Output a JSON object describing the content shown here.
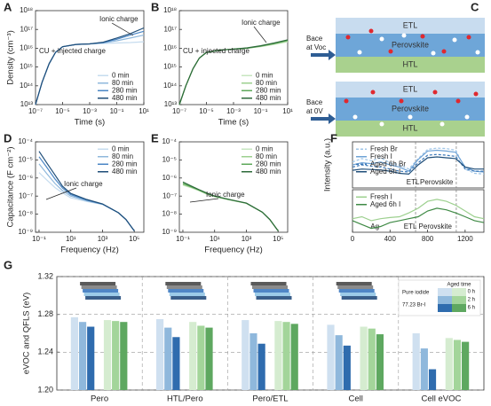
{
  "chart_data": [
    {
      "type": "line",
      "panel": "A",
      "xscale": "log",
      "yscale": "log",
      "xlabel": "Time (s)",
      "ylabel": "Density (cm⁻³)",
      "xlim": [
        1e-07,
        10
      ],
      "ylim": [
        10000000000000.0,
        1e+18
      ],
      "xticks": [
        {
          "value": 1e-07,
          "label": "10⁻⁷"
        },
        {
          "value": 1e-05,
          "label": "10⁻⁵"
        },
        {
          "value": 0.001,
          "label": "10⁻³"
        },
        {
          "value": 0.1,
          "label": "10⁻¹"
        },
        {
          "value": 10,
          "label": "10¹"
        }
      ],
      "yticks": [
        {
          "value": 10000000000000.0,
          "label": "10¹³"
        },
        {
          "value": 100000000000000.0,
          "label": "10¹⁴"
        },
        {
          "value": 1000000000000000.0,
          "label": "10¹⁵"
        },
        {
          "value": 1e+16,
          "label": "10¹⁶"
        },
        {
          "value": 1e+17,
          "label": "10¹⁷"
        },
        {
          "value": 1e+18,
          "label": "10¹⁸"
        }
      ],
      "x": [
        1e-07,
        3e-07,
        1e-06,
        3e-06,
        1e-05,
        0.0001,
        0.001,
        0.01,
        0.1,
        1,
        10
      ],
      "series": [
        {
          "name": "0 min",
          "color": "#c6dcef",
          "values": [
            10000000000000.0,
            150000000000000.0,
            1500000000000000.0,
            6000000000000000.0,
            1.2e+16,
            1.6e+16,
            1.7e+16,
            1.8e+16,
            1.9e+16,
            2e+16,
            2.2e+16
          ]
        },
        {
          "name": "80 min",
          "color": "#8fb8dc",
          "values": [
            10000000000000.0,
            150000000000000.0,
            1500000000000000.0,
            6000000000000000.0,
            1.2e+16,
            1.6e+16,
            1.7e+16,
            1.9e+16,
            2.5e+16,
            3.5e+16,
            5e+16
          ]
        },
        {
          "name": "280 min",
          "color": "#4a86c5",
          "values": [
            10000000000000.0,
            150000000000000.0,
            1500000000000000.0,
            6000000000000000.0,
            1.2e+16,
            1.6e+16,
            1.7e+16,
            2e+16,
            3e+16,
            5e+16,
            8e+16
          ]
        },
        {
          "name": "480 min",
          "color": "#1f4e79",
          "values": [
            10000000000000.0,
            150000000000000.0,
            1500000000000000.0,
            6000000000000000.0,
            1.2e+16,
            1.6e+16,
            1.7e+16,
            2.1e+16,
            3.5e+16,
            6e+16,
            1.2e+17
          ]
        }
      ],
      "legend": "lower right",
      "annotations": [
        "Ionic charge",
        "CU + injected charge"
      ]
    },
    {
      "type": "line",
      "panel": "B",
      "xscale": "log",
      "yscale": "log",
      "xlabel": "Time (s)",
      "xlim": [
        1e-07,
        10
      ],
      "ylim": [
        10000000000000.0,
        1e+18
      ],
      "xticks": [
        {
          "value": 1e-07,
          "label": "10⁻⁷"
        },
        {
          "value": 1e-05,
          "label": "10⁻⁵"
        },
        {
          "value": 0.001,
          "label": "10⁻³"
        },
        {
          "value": 0.1,
          "label": "10⁻¹"
        },
        {
          "value": 10,
          "label": "10¹"
        }
      ],
      "yticks": [
        {
          "value": 10000000000000.0,
          "label": "10¹³"
        },
        {
          "value": 100000000000000.0,
          "label": "10¹⁴"
        },
        {
          "value": 1000000000000000.0,
          "label": "10¹⁵"
        },
        {
          "value": 1e+16,
          "label": "10¹⁶"
        },
        {
          "value": 1e+17,
          "label": "10¹⁷"
        },
        {
          "value": 1e+18,
          "label": "10¹⁸"
        }
      ],
      "x": [
        1e-07,
        3e-07,
        1e-06,
        3e-06,
        1e-05,
        0.0001,
        0.001,
        0.01,
        0.1,
        1,
        10
      ],
      "series": [
        {
          "name": "0 min",
          "color": "#c7e6c0",
          "values": [
            10000000000000.0,
            100000000000000.0,
            800000000000000.0,
            3000000000000000.0,
            6000000000000000.0,
            8000000000000000.0,
            9000000000000000.0,
            1e+16,
            1.2e+16,
            1.6e+16,
            2.2e+16
          ]
        },
        {
          "name": "80 min",
          "color": "#9dd08f",
          "values": [
            10000000000000.0,
            100000000000000.0,
            800000000000000.0,
            3000000000000000.0,
            6000000000000000.0,
            8000000000000000.0,
            9000000000000000.0,
            1e+16,
            1.25e+16,
            1.7e+16,
            2.4e+16
          ]
        },
        {
          "name": "280 min",
          "color": "#5da85a",
          "values": [
            10000000000000.0,
            100000000000000.0,
            800000000000000.0,
            3000000000000000.0,
            6000000000000000.0,
            8000000000000000.0,
            9000000000000000.0,
            1e+16,
            1.3e+16,
            1.8e+16,
            2.6e+16
          ]
        },
        {
          "name": "480 min",
          "color": "#2d6a3a",
          "values": [
            10000000000000.0,
            100000000000000.0,
            800000000000000.0,
            3000000000000000.0,
            6000000000000000.0,
            8000000000000000.0,
            9000000000000000.0,
            1.05e+16,
            1.35e+16,
            1.9e+16,
            2.8e+16
          ]
        }
      ],
      "legend": "lower right",
      "annotations": [
        "Ionic charge",
        "CU + injected charge"
      ]
    },
    {
      "type": "line",
      "panel": "D",
      "xscale": "log",
      "yscale": "log",
      "xlabel": "Frequency (Hz)",
      "ylabel": "Capacitance (F cm⁻²)",
      "xlim": [
        0.06,
        400000
      ],
      "ylim": [
        1e-09,
        0.0001
      ],
      "xticks": [
        {
          "value": 0.1,
          "label": "10⁻¹"
        },
        {
          "value": 10,
          "label": "10¹"
        },
        {
          "value": 1000,
          "label": "10³"
        },
        {
          "value": 100000,
          "label": "10⁵"
        }
      ],
      "yticks": [
        {
          "value": 1e-09,
          "label": "10⁻⁹"
        },
        {
          "value": 1e-08,
          "label": "10⁻⁸"
        },
        {
          "value": 1e-07,
          "label": "10⁻⁷"
        },
        {
          "value": 1e-06,
          "label": "10⁻⁶"
        },
        {
          "value": 1e-05,
          "label": "10⁻⁵"
        },
        {
          "value": 0.0001,
          "label": "10⁻⁴"
        }
      ],
      "x": [
        0.1,
        0.3,
        1,
        3,
        10,
        100,
        1000,
        10000,
        30000,
        100000
      ],
      "series": [
        {
          "name": "0 min",
          "color": "#c6dcef",
          "values": [
            2e-06,
            8e-07,
            3e-07,
            1.5e-07,
            8e-08,
            5e-08,
            3.5e-08,
            1.2e-08,
            5e-09,
            1.2e-09
          ]
        },
        {
          "name": "80 min",
          "color": "#8fb8dc",
          "values": [
            6e-06,
            1.8e-06,
            5e-07,
            2e-07,
            1e-07,
            5.5e-08,
            3.5e-08,
            1.2e-08,
            5e-09,
            1.2e-09
          ]
        },
        {
          "name": "280 min",
          "color": "#4a86c5",
          "values": [
            1.5e-05,
            4e-06,
            9e-07,
            2.8e-07,
            1.2e-07,
            6e-08,
            3.6e-08,
            1.2e-08,
            5e-09,
            1.2e-09
          ]
        },
        {
          "name": "480 min",
          "color": "#1f4e79",
          "values": [
            3e-05,
            7e-06,
            1.5e-06,
            3.5e-07,
            1.4e-07,
            6.5e-08,
            3.7e-08,
            1.2e-08,
            5e-09,
            1.2e-09
          ]
        }
      ],
      "legend": "upper right",
      "annotations": [
        "Ionic charge"
      ]
    },
    {
      "type": "line",
      "panel": "E",
      "xscale": "log",
      "yscale": "log",
      "xlabel": "Frequency (Hz)",
      "xlim": [
        0.06,
        400000
      ],
      "ylim": [
        1e-09,
        0.0001
      ],
      "xticks": [
        {
          "value": 0.1,
          "label": "10⁻¹"
        },
        {
          "value": 10,
          "label": "10¹"
        },
        {
          "value": 1000,
          "label": "10³"
        },
        {
          "value": 100000,
          "label": "10⁵"
        }
      ],
      "yticks": [
        {
          "value": 1e-09,
          "label": "10⁻⁹"
        },
        {
          "value": 1e-08,
          "label": "10⁻⁸"
        },
        {
          "value": 1e-07,
          "label": "10⁻⁷"
        },
        {
          "value": 1e-06,
          "label": "10⁻⁶"
        },
        {
          "value": 1e-05,
          "label": "10⁻⁵"
        },
        {
          "value": 0.0001,
          "label": "10⁻⁴"
        }
      ],
      "x": [
        0.1,
        0.3,
        1,
        3,
        10,
        100,
        1000,
        10000,
        30000,
        100000
      ],
      "series": [
        {
          "name": "0 min",
          "color": "#c7e6c0",
          "values": [
            4e-07,
            3e-07,
            2e-07,
            1.3e-07,
            9e-08,
            6e-08,
            4e-08,
            1.3e-08,
            5e-09,
            1.2e-09
          ]
        },
        {
          "name": "80 min",
          "color": "#9dd08f",
          "values": [
            4.5e-07,
            3.2e-07,
            2.1e-07,
            1.4e-07,
            9.5e-08,
            6e-08,
            4e-08,
            1.3e-08,
            5e-09,
            1.2e-09
          ]
        },
        {
          "name": "280 min",
          "color": "#5da85a",
          "values": [
            5e-07,
            3.4e-07,
            2.2e-07,
            1.4e-07,
            1e-07,
            6.2e-08,
            4e-08,
            1.3e-08,
            5e-09,
            1.2e-09
          ]
        },
        {
          "name": "480 min",
          "color": "#2d6a3a",
          "values": [
            6e-07,
            3.8e-07,
            2.3e-07,
            1.5e-07,
            1e-07,
            6.3e-08,
            4.1e-08,
            1.3e-08,
            5e-09,
            1.2e-09
          ]
        }
      ],
      "legend": "upper right",
      "annotations": [
        "Ionic charge"
      ]
    },
    {
      "type": "line",
      "panel": "F",
      "ylabel": "Intensity (a.u.)",
      "xlim": [
        0,
        1400
      ],
      "ylim": [
        0,
        1.1
      ],
      "x": [
        0,
        100,
        200,
        300,
        400,
        500,
        600,
        700,
        800,
        900,
        1000,
        1100,
        1200,
        1300,
        1400
      ],
      "series": [
        {
          "name": "Fresh Br",
          "color": "#9ec5e8",
          "dash": true,
          "values": [
            0.62,
            0.7,
            0.65,
            0.72,
            0.6,
            0.55,
            0.45,
            0.7,
            0.92,
            0.95,
            0.94,
            0.9,
            0.45,
            0.35,
            0.33
          ]
        },
        {
          "name": "Fresh  I",
          "color": "#6fa3d6",
          "values": [
            0.55,
            0.6,
            0.58,
            0.62,
            0.55,
            0.5,
            0.4,
            0.68,
            0.88,
            0.9,
            0.88,
            0.85,
            0.5,
            0.4,
            0.38
          ]
        },
        {
          "name": "Aged 6h Br",
          "color": "#3c78b8",
          "dash": true,
          "values": [
            0.5,
            0.55,
            0.52,
            0.5,
            0.45,
            0.4,
            0.38,
            0.6,
            0.78,
            0.8,
            0.78,
            0.75,
            0.45,
            0.4,
            0.4
          ]
        },
        {
          "name": "Aged 6h  I",
          "color": "#1f4e79",
          "values": [
            0.42,
            0.45,
            0.44,
            0.43,
            0.4,
            0.35,
            0.33,
            0.55,
            0.72,
            0.74,
            0.72,
            0.7,
            0.5,
            0.45,
            0.45
          ]
        }
      ],
      "legend": "upper left",
      "regions": [
        "ETL",
        "Perovskite"
      ]
    },
    {
      "type": "line",
      "xlim": [
        0,
        1400
      ],
      "ylim": [
        0,
        1.1
      ],
      "xticks": [
        0,
        400,
        800,
        1200
      ],
      "x": [
        0,
        100,
        200,
        300,
        400,
        500,
        600,
        700,
        800,
        900,
        1000,
        1100,
        1200,
        1300,
        1400
      ],
      "series": [
        {
          "name": "Fresh  I",
          "color": "#9dd08f",
          "values": [
            0.35,
            0.4,
            0.3,
            0.35,
            0.38,
            0.4,
            0.5,
            0.62,
            0.8,
            0.85,
            0.8,
            0.7,
            0.55,
            0.4,
            0.35
          ]
        },
        {
          "name": "Aged 6h  I",
          "color": "#3f8a45",
          "values": [
            0.3,
            0.2,
            0.1,
            0.15,
            0.25,
            0.3,
            0.35,
            0.4,
            0.55,
            0.62,
            0.58,
            0.5,
            0.4,
            0.3,
            0.25
          ]
        }
      ],
      "legend": "upper left",
      "regions": [
        "Ag",
        "ETL",
        "Perovskite"
      ]
    },
    {
      "type": "bar",
      "panel": "G",
      "ylabel": "eVOC and QFLS (eV)",
      "ylim": [
        1.2,
        1.32
      ],
      "yticks": [
        {
          "value": 1.2,
          "label": "1.20"
        },
        {
          "value": 1.24,
          "label": "1.24"
        },
        {
          "value": 1.28,
          "label": "1.28"
        },
        {
          "value": 1.32,
          "label": "1.32"
        }
      ],
      "grid": true,
      "categories": [
        "Pero",
        "HTL/Pero",
        "Pero/ETL",
        "Cell",
        "Cell eVOC"
      ],
      "series": [
        {
          "color": "#cfe0f0",
          "values": [
            1.277,
            1.275,
            1.274,
            1.269,
            1.26
          ]
        },
        {
          "color": "#8fb8dc",
          "values": [
            1.272,
            1.266,
            1.26,
            1.258,
            1.244
          ]
        },
        {
          "color": "#2f6cae",
          "values": [
            1.267,
            1.256,
            1.249,
            1.247,
            1.222
          ]
        },
        {
          "color": "#d5ecd0",
          "values": [
            1.274,
            1.272,
            1.273,
            1.267,
            1.255
          ]
        },
        {
          "color": "#a3d59a",
          "values": [
            1.273,
            1.268,
            1.272,
            1.265,
            1.253
          ]
        },
        {
          "color": "#5ea860",
          "values": [
            1.272,
            1.266,
            1.27,
            1.259,
            1.251
          ]
        }
      ],
      "legend_title": "Aged time",
      "legend_rows": [
        "0 h",
        "2 h",
        "6 h"
      ],
      "legend_columns": [
        "Pure iodide",
        "77.23 Br-I"
      ]
    }
  ],
  "diagram": {
    "panel": "C",
    "top": {
      "layers": [
        "ETL",
        "Perovskite",
        "HTL"
      ],
      "bias": [
        "Bace",
        "at Voc"
      ]
    },
    "bottom": {
      "layers": [
        "ETL",
        "Perovskite",
        "HTL"
      ],
      "bias": [
        "Bace",
        "at 0V"
      ]
    }
  }
}
